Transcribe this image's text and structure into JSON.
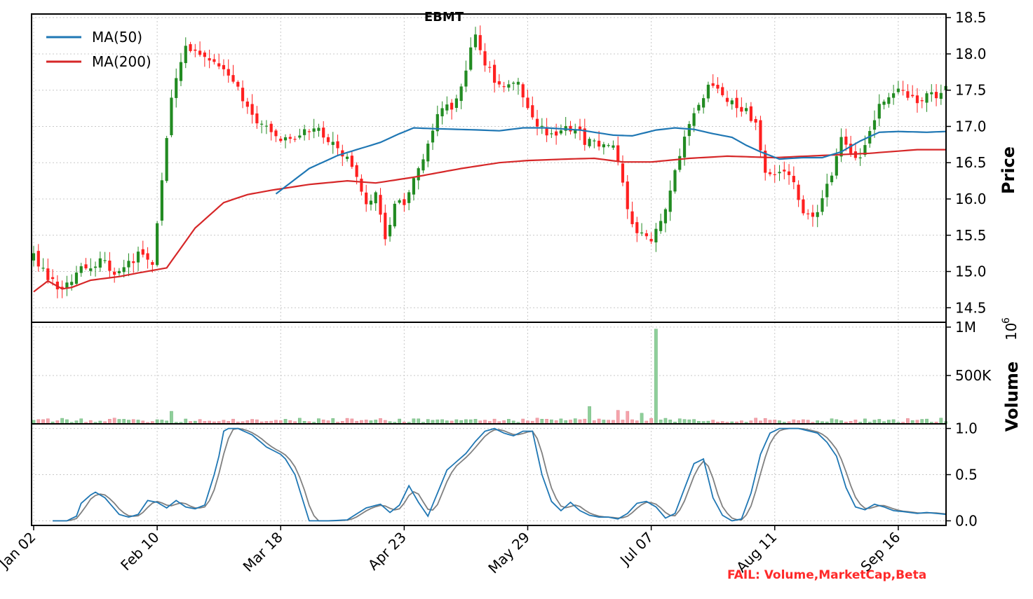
{
  "chart_data": {
    "type": "candlestick",
    "title": "EBMT",
    "status_text": "FAIL: Volume,MarketCap,Beta",
    "x_tick_labels": [
      "Jan 02",
      "Feb 10",
      "Mar 18",
      "Apr 23",
      "May 29",
      "Jul 07",
      "Aug 11",
      "Sep 16"
    ],
    "x_tick_indices": [
      0,
      26,
      52,
      78,
      104,
      130,
      156,
      182
    ],
    "num_bars": 193,
    "price_panel": {
      "ylabel": "Price",
      "ylim": [
        14.3,
        18.55
      ],
      "ticks": [
        14.5,
        15.0,
        15.5,
        16.0,
        16.5,
        17.0,
        17.5,
        18.0,
        18.5
      ],
      "tick_labels": [
        "14.5",
        "15.0",
        "15.5",
        "16.0",
        "16.5",
        "17.0",
        "17.5",
        "18.0",
        "18.5"
      ],
      "legend": [
        {
          "label": "MA(50)",
          "color": "#1f77b4"
        },
        {
          "label": "MA(200)",
          "color": "#d62728"
        }
      ],
      "close_anchors": [
        [
          0,
          15.2
        ],
        [
          3,
          14.9
        ],
        [
          6,
          14.75
        ],
        [
          10,
          15.05
        ],
        [
          14,
          15.15
        ],
        [
          18,
          14.95
        ],
        [
          22,
          15.25
        ],
        [
          25,
          15.05
        ],
        [
          27,
          16.3
        ],
        [
          29,
          17.4
        ],
        [
          32,
          18.15
        ],
        [
          36,
          17.9
        ],
        [
          40,
          17.8
        ],
        [
          44,
          17.4
        ],
        [
          48,
          17.0
        ],
        [
          52,
          16.8
        ],
        [
          56,
          16.9
        ],
        [
          60,
          16.95
        ],
        [
          64,
          16.7
        ],
        [
          67,
          16.5
        ],
        [
          69,
          16.1
        ],
        [
          70,
          15.9
        ],
        [
          72,
          16.1
        ],
        [
          74,
          15.4
        ],
        [
          76,
          15.95
        ],
        [
          78,
          15.9
        ],
        [
          80,
          16.25
        ],
        [
          82,
          16.6
        ],
        [
          84,
          17.0
        ],
        [
          86,
          17.3
        ],
        [
          88,
          17.2
        ],
        [
          90,
          17.55
        ],
        [
          92,
          18.05
        ],
        [
          93,
          18.25
        ],
        [
          95,
          17.9
        ],
        [
          97,
          17.65
        ],
        [
          99,
          17.5
        ],
        [
          102,
          17.6
        ],
        [
          104,
          17.2
        ],
        [
          106,
          17.05
        ],
        [
          108,
          16.85
        ],
        [
          110,
          16.9
        ],
        [
          112,
          16.95
        ],
        [
          114,
          17.0
        ],
        [
          116,
          16.8
        ],
        [
          118,
          16.85
        ],
        [
          120,
          16.7
        ],
        [
          122,
          16.75
        ],
        [
          124,
          16.2
        ],
        [
          126,
          15.6
        ],
        [
          128,
          15.5
        ],
        [
          130,
          15.4
        ],
        [
          132,
          15.7
        ],
        [
          134,
          16.1
        ],
        [
          136,
          16.6
        ],
        [
          138,
          17.0
        ],
        [
          140,
          17.3
        ],
        [
          142,
          17.55
        ],
        [
          144,
          17.5
        ],
        [
          146,
          17.35
        ],
        [
          148,
          17.25
        ],
        [
          150,
          17.2
        ],
        [
          152,
          17.05
        ],
        [
          154,
          16.4
        ],
        [
          156,
          16.3
        ],
        [
          158,
          16.4
        ],
        [
          160,
          16.2
        ],
        [
          162,
          15.85
        ],
        [
          164,
          15.75
        ],
        [
          166,
          16.0
        ],
        [
          168,
          16.35
        ],
        [
          170,
          16.9
        ],
        [
          172,
          16.6
        ],
        [
          174,
          16.55
        ],
        [
          176,
          16.9
        ],
        [
          178,
          17.3
        ],
        [
          180,
          17.35
        ],
        [
          182,
          17.55
        ],
        [
          184,
          17.45
        ],
        [
          186,
          17.3
        ],
        [
          188,
          17.5
        ],
        [
          190,
          17.35
        ],
        [
          192,
          17.5
        ]
      ],
      "ma50_anchors": [
        [
          51,
          16.07
        ],
        [
          58,
          16.42
        ],
        [
          64,
          16.6
        ],
        [
          68,
          16.68
        ],
        [
          73,
          16.78
        ],
        [
          77,
          16.9
        ],
        [
          80,
          16.98
        ],
        [
          84,
          16.97
        ],
        [
          94,
          16.95
        ],
        [
          98,
          16.94
        ],
        [
          103,
          16.98
        ],
        [
          108,
          16.98
        ],
        [
          115,
          16.95
        ],
        [
          120,
          16.9
        ],
        [
          122,
          16.88
        ],
        [
          126,
          16.87
        ],
        [
          131,
          16.95
        ],
        [
          135,
          16.98
        ],
        [
          139,
          16.96
        ],
        [
          143,
          16.9
        ],
        [
          147,
          16.85
        ],
        [
          150,
          16.74
        ],
        [
          153,
          16.65
        ],
        [
          157,
          16.55
        ],
        [
          162,
          16.57
        ],
        [
          166,
          16.57
        ],
        [
          170,
          16.65
        ],
        [
          174,
          16.8
        ],
        [
          178,
          16.92
        ],
        [
          182,
          16.93
        ],
        [
          188,
          16.92
        ],
        [
          192,
          16.93
        ]
      ],
      "ma200_anchors": [
        [
          0,
          14.72
        ],
        [
          3,
          14.87
        ],
        [
          6,
          14.76
        ],
        [
          8,
          14.78
        ],
        [
          12,
          14.88
        ],
        [
          18,
          14.93
        ],
        [
          22,
          14.98
        ],
        [
          28,
          15.05
        ],
        [
          34,
          15.6
        ],
        [
          40,
          15.95
        ],
        [
          45,
          16.06
        ],
        [
          50,
          16.12
        ],
        [
          58,
          16.2
        ],
        [
          66,
          16.25
        ],
        [
          72,
          16.22
        ],
        [
          80,
          16.3
        ],
        [
          90,
          16.42
        ],
        [
          98,
          16.5
        ],
        [
          104,
          16.53
        ],
        [
          112,
          16.55
        ],
        [
          118,
          16.56
        ],
        [
          124,
          16.51
        ],
        [
          130,
          16.51
        ],
        [
          138,
          16.56
        ],
        [
          146,
          16.59
        ],
        [
          156,
          16.57
        ],
        [
          166,
          16.6
        ],
        [
          176,
          16.63
        ],
        [
          186,
          16.68
        ],
        [
          192,
          16.68
        ]
      ]
    },
    "volume_panel": {
      "ylabel": "Volume",
      "exponent_label": "10",
      "exponent_power": "6",
      "ylim": [
        0,
        1.05
      ],
      "ticks": [
        0.5,
        1.0
      ],
      "tick_labels": [
        "500K",
        "1M"
      ],
      "spikes": [
        [
          29,
          0.13
        ],
        [
          123,
          0.14
        ],
        [
          125,
          0.13
        ],
        [
          128,
          0.11
        ],
        [
          131,
          0.98
        ],
        [
          117,
          0.18
        ]
      ]
    },
    "stochastic_panel": {
      "ylim": [
        -0.05,
        1.05
      ],
      "ticks": [
        0.0,
        0.5,
        1.0
      ],
      "tick_labels": [
        "0.0",
        "0.5",
        "1.0"
      ],
      "k_anchors": [
        [
          4,
          0.0
        ],
        [
          7,
          0.0
        ],
        [
          9,
          0.05
        ],
        [
          10,
          0.19
        ],
        [
          12,
          0.28
        ],
        [
          13,
          0.31
        ],
        [
          15,
          0.25
        ],
        [
          18,
          0.07
        ],
        [
          20,
          0.04
        ],
        [
          22,
          0.07
        ],
        [
          24,
          0.22
        ],
        [
          26,
          0.2
        ],
        [
          28,
          0.14
        ],
        [
          30,
          0.22
        ],
        [
          32,
          0.15
        ],
        [
          34,
          0.13
        ],
        [
          36,
          0.17
        ],
        [
          38,
          0.5
        ],
        [
          39,
          0.7
        ],
        [
          40,
          0.97
        ],
        [
          41,
          1.0
        ],
        [
          43,
          1.0
        ],
        [
          46,
          0.93
        ],
        [
          49,
          0.8
        ],
        [
          52,
          0.72
        ],
        [
          53,
          0.67
        ],
        [
          55,
          0.5
        ],
        [
          58,
          0.0
        ],
        [
          62,
          0.0
        ],
        [
          66,
          0.01
        ],
        [
          70,
          0.14
        ],
        [
          73,
          0.18
        ],
        [
          75,
          0.09
        ],
        [
          77,
          0.17
        ],
        [
          79,
          0.38
        ],
        [
          81,
          0.2
        ],
        [
          83,
          0.05
        ],
        [
          85,
          0.3
        ],
        [
          87,
          0.55
        ],
        [
          89,
          0.64
        ],
        [
          91,
          0.73
        ],
        [
          93,
          0.86
        ],
        [
          95,
          0.97
        ],
        [
          97,
          1.0
        ],
        [
          99,
          0.95
        ],
        [
          101,
          0.92
        ],
        [
          103,
          0.97
        ],
        [
          105,
          0.97
        ],
        [
          107,
          0.5
        ],
        [
          109,
          0.21
        ],
        [
          111,
          0.11
        ],
        [
          113,
          0.2
        ],
        [
          115,
          0.11
        ],
        [
          117,
          0.06
        ],
        [
          119,
          0.04
        ],
        [
          121,
          0.04
        ],
        [
          123,
          0.02
        ],
        [
          125,
          0.08
        ],
        [
          127,
          0.19
        ],
        [
          129,
          0.21
        ],
        [
          131,
          0.15
        ],
        [
          133,
          0.03
        ],
        [
          135,
          0.08
        ],
        [
          137,
          0.35
        ],
        [
          139,
          0.62
        ],
        [
          141,
          0.67
        ],
        [
          143,
          0.25
        ],
        [
          145,
          0.06
        ],
        [
          147,
          0.0
        ],
        [
          149,
          0.02
        ],
        [
          151,
          0.3
        ],
        [
          153,
          0.72
        ],
        [
          155,
          0.95
        ],
        [
          157,
          1.0
        ],
        [
          161,
          1.0
        ],
        [
          165,
          0.95
        ],
        [
          167,
          0.85
        ],
        [
          169,
          0.7
        ],
        [
          171,
          0.36
        ],
        [
          173,
          0.15
        ],
        [
          175,
          0.12
        ],
        [
          177,
          0.18
        ],
        [
          179,
          0.15
        ],
        [
          181,
          0.11
        ],
        [
          183,
          0.1
        ],
        [
          186,
          0.08
        ],
        [
          188,
          0.09
        ],
        [
          190,
          0.08
        ],
        [
          192,
          0.07
        ]
      ]
    }
  }
}
